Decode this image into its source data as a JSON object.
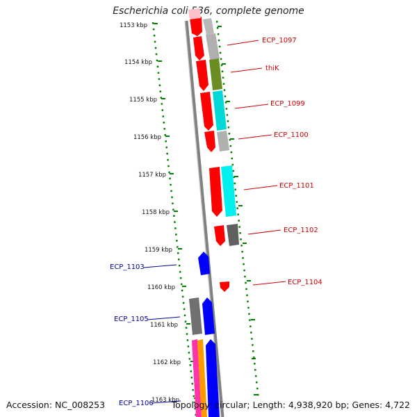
{
  "title": "Escherichia coli 536, complete genome",
  "accession": "Accession: NC_008253",
  "topology": "Topology: circular; Length: 4,938,920 bp; Genes: 4,722",
  "ruler": [
    "1153 kbp",
    "1154 kbp",
    "1155 kbp",
    "1156 kbp",
    "1157 kbp",
    "1158 kbp",
    "1159 kbp",
    "1160 kbp",
    "1161 kbp",
    "1162 kbp",
    "1163 kbp"
  ],
  "gene_labels": {
    "ecp_1097": "ECP_1097",
    "thik": "thiK",
    "ecp_1099": "ECP_1099",
    "ecp_1100": "ECP_1100",
    "ecp_1101": "ECP_1101",
    "ecp_1102": "ECP_1102",
    "ecp_1103": "ECP_1103",
    "ecp_1104": "ECP_1104",
    "ecp_1105": "ECP_1105",
    "ecp_1106": "ECP_1106"
  },
  "colors": {
    "forward_label": "#cc0000",
    "reverse_label": "#000099",
    "scale_dots": "#008000",
    "backbone": "#808080",
    "feature_red": "#ff0000",
    "feature_blue": "#0000ff",
    "feature_grey": "#b0b0b0",
    "feature_dark_grey": "#606060",
    "feature_olive": "#6b8e23",
    "feature_cyan": "#00d8d8",
    "feature_orange": "#ff9900",
    "feature_magenta": "#ff33aa",
    "feature_pink": "#ffc0c8"
  }
}
